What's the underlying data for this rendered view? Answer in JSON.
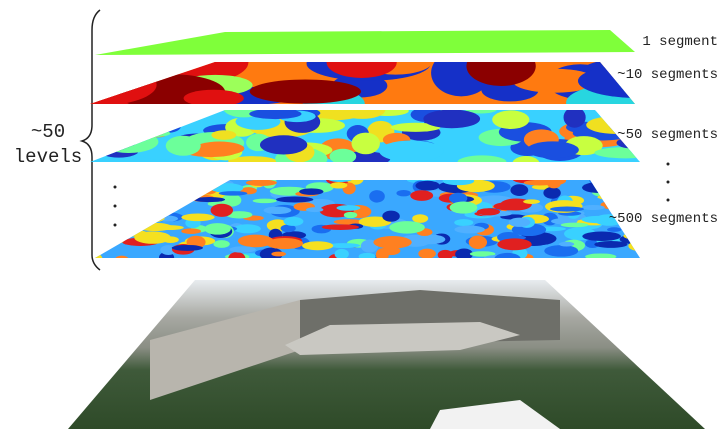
{
  "levels_label": {
    "line1": "~50",
    "line2": "levels"
  },
  "layers": [
    {
      "label": "1 segment"
    },
    {
      "label": "~10 segments"
    },
    {
      "label": "~50 segments"
    },
    {
      "label": "~500 segments"
    }
  ]
}
